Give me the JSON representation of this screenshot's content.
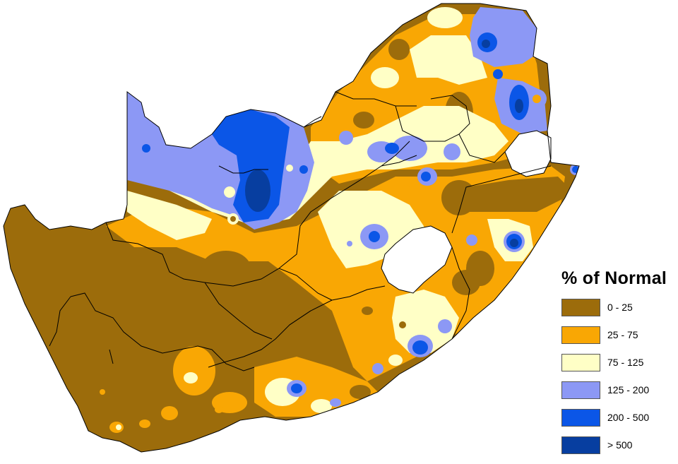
{
  "colors": {
    "c0_25": "#9c6c0b",
    "c25_75": "#f9a704",
    "c75_125": "#ffffc6",
    "c125_200": "#8c98f5",
    "c200_500": "#0b56e7",
    "c500": "#073ea0",
    "border": "#000000",
    "ocean": "#ffffff"
  },
  "legend": {
    "title": "% of Normal",
    "items": [
      {
        "label": "0 - 25",
        "color": "#9c6c0b"
      },
      {
        "label": "25 - 75",
        "color": "#f9a704"
      },
      {
        "label": "75 - 125",
        "color": "#ffffc6"
      },
      {
        "label": "125 - 200",
        "color": "#8c98f5"
      },
      {
        "label": "200 - 500",
        "color": "#0b56e7"
      },
      {
        "label": "> 500",
        "color": "#073ea0"
      }
    ]
  }
}
